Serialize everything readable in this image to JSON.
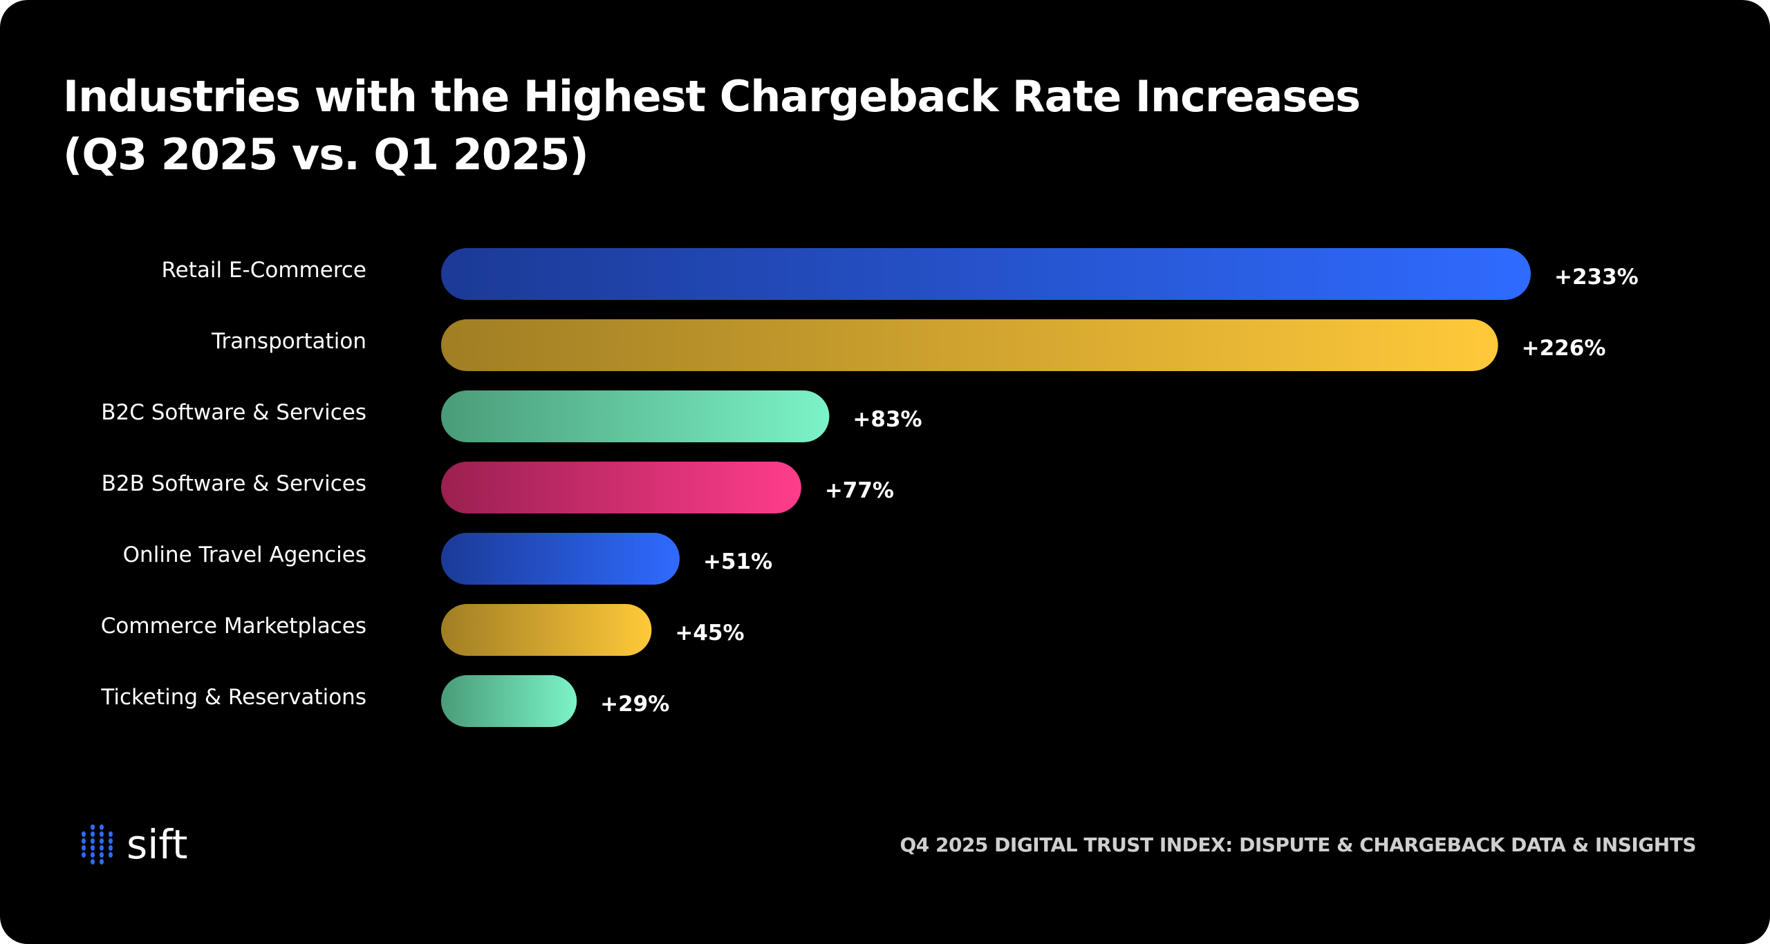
{
  "header": {
    "title_line1": "Industries with the Highest Chargeback Rate Increases",
    "title_line2": "(Q3 2025 vs. Q1 2025)"
  },
  "chart_data": {
    "type": "bar",
    "orientation": "horizontal",
    "title": "Industries with the Highest Chargeback Rate Increases (Q3 2025 vs. Q1 2025)",
    "categories": [
      "Retail E-Commerce",
      "Transportation",
      "B2C Software & Services",
      "B2B Software & Services",
      "Online Travel Agencies",
      "Commerce Marketplaces",
      "Ticketing & Reservations"
    ],
    "values": [
      233,
      226,
      83,
      77,
      51,
      45,
      29
    ],
    "labels": [
      "+233%",
      "+226%",
      "+83%",
      "+77%",
      "+51%",
      "+45%",
      "+29%"
    ],
    "unit": "%",
    "grid": false,
    "xlim": [
      0,
      233
    ],
    "colors": [
      [
        "#1c3a96",
        "#2f6bff"
      ],
      [
        "#a07e24",
        "#ffc93a"
      ],
      [
        "#4a9c78",
        "#7cf3c8"
      ],
      [
        "#9a2050",
        "#ff3d8b"
      ],
      [
        "#1c3a96",
        "#2f6bff"
      ],
      [
        "#a07e24",
        "#ffc93a"
      ],
      [
        "#4a9c78",
        "#7cf3c8"
      ]
    ]
  },
  "brand": {
    "logo_text": "sift",
    "accent": "#2f6bff"
  },
  "footer": {
    "source": "Q4 2025 DIGITAL TRUST INDEX: DISPUTE & CHARGEBACK DATA & INSIGHTS"
  }
}
